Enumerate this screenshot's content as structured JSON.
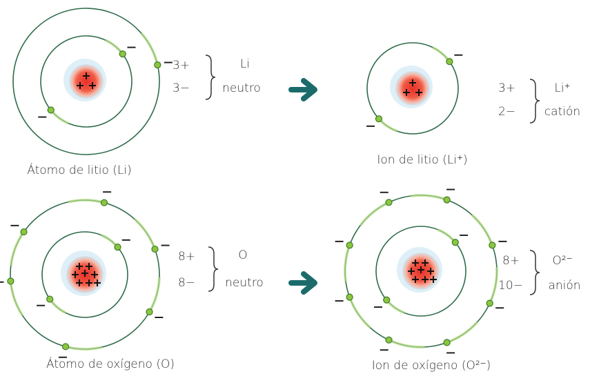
{
  "panels": [
    {
      "positive": "3+",
      "negative": "3−",
      "symbol": "Li",
      "state": "neutro",
      "caption": "Átomo de litio (Li)"
    },
    {
      "positive": "3+",
      "negative": "2−",
      "symbol": "Li⁺",
      "state": "catión",
      "caption": "Ion de litio (Li⁺)"
    },
    {
      "positive": "8+",
      "negative": "8−",
      "symbol": "O",
      "state": "neutro",
      "caption": "Átomo de oxígeno (O)"
    },
    {
      "positive": "8+",
      "negative": "10−",
      "symbol": "O²⁻",
      "state": "anión",
      "caption": "Ion de oxígeno (O²⁻)"
    }
  ]
}
